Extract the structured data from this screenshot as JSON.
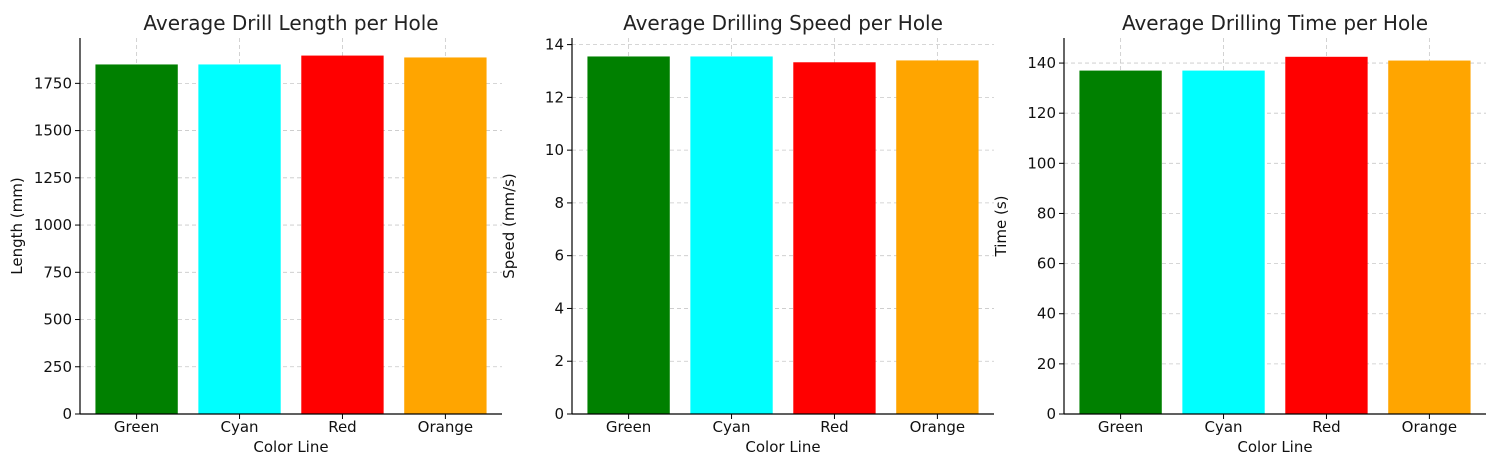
{
  "chart_data": [
    {
      "type": "bar",
      "title": "Average Drill Length per Hole",
      "xlabel": "Color Line",
      "ylabel": "Length (mm)",
      "categories": [
        "Green",
        "Cyan",
        "Red",
        "Orange"
      ],
      "values": [
        1850,
        1850,
        1897,
        1887
      ],
      "colors": [
        "#008000",
        "#00ffff",
        "#ff0000",
        "#ffa500"
      ],
      "ylim": [
        0,
        1990
      ],
      "yticks": [
        0,
        250,
        500,
        750,
        1000,
        1250,
        1500,
        1750
      ],
      "grid": true
    },
    {
      "type": "bar",
      "title": "Average Drilling Speed per Hole",
      "xlabel": "Color Line",
      "ylabel": "Speed (mm/s)",
      "categories": [
        "Green",
        "Cyan",
        "Red",
        "Orange"
      ],
      "values": [
        13.55,
        13.55,
        13.33,
        13.4
      ],
      "colors": [
        "#008000",
        "#00ffff",
        "#ff0000",
        "#ffa500"
      ],
      "ylim": [
        0,
        14.25
      ],
      "yticks": [
        0,
        2,
        4,
        6,
        8,
        10,
        12,
        14
      ],
      "grid": true
    },
    {
      "type": "bar",
      "title": "Average Drilling Time per Hole",
      "xlabel": "Color Line",
      "ylabel": "Time (s)",
      "categories": [
        "Green",
        "Cyan",
        "Red",
        "Orange"
      ],
      "values": [
        137,
        137,
        142.5,
        141
      ],
      "colors": [
        "#008000",
        "#00ffff",
        "#ff0000",
        "#ffa500"
      ],
      "ylim": [
        0,
        150
      ],
      "yticks": [
        0,
        20,
        40,
        60,
        80,
        100,
        120,
        140
      ],
      "grid": true
    }
  ]
}
